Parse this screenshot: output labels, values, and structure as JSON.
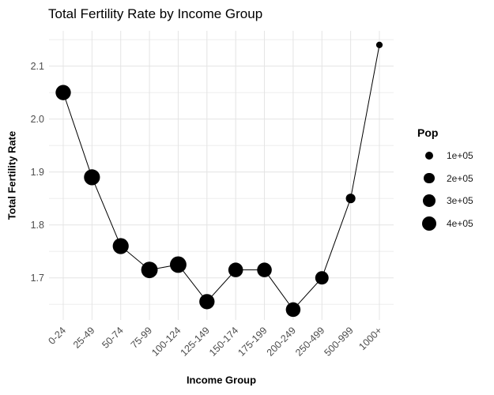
{
  "title": "Total Fertility Rate by Income Group",
  "axes": {
    "x_title": "Income Group",
    "y_title": "Total Fertility Rate"
  },
  "legend": {
    "title": "Pop",
    "items": [
      {
        "label": "1e+05",
        "pop": 100000
      },
      {
        "label": "2e+05",
        "pop": 200000
      },
      {
        "label": "3e+05",
        "pop": 300000
      },
      {
        "label": "4e+05",
        "pop": 400000
      }
    ]
  },
  "chart_data": {
    "type": "scatter",
    "connected_line": true,
    "title": "Total Fertility Rate by Income Group",
    "xlabel": "Income Group",
    "ylabel": "Total Fertility Rate",
    "categories": [
      "0-24",
      "25-49",
      "50-74",
      "75-99",
      "100-124",
      "125-149",
      "150-174",
      "175-199",
      "200-249",
      "250-499",
      "500-999",
      "1000+"
    ],
    "series": [
      {
        "name": "Total Fertility Rate",
        "values": [
          2.05,
          1.89,
          1.76,
          1.715,
          1.725,
          1.655,
          1.715,
          1.715,
          1.64,
          1.7,
          1.85,
          2.14
        ]
      },
      {
        "name": "Pop (bubble size, estimated from point area)",
        "values": [
          470000,
          520000,
          520000,
          560000,
          560000,
          470000,
          430000,
          430000,
          430000,
          350000,
          160000,
          60000
        ]
      }
    ],
    "y_ticks": [
      2.1,
      2.0,
      1.9,
      1.8,
      1.7
    ],
    "y_minor_ticks": [
      2.15,
      2.05,
      1.95,
      1.85,
      1.75,
      1.65
    ],
    "ylim": [
      1.62,
      2.165
    ],
    "grid": true,
    "legend_position": "right",
    "legend_title": "Pop",
    "point_color": "#000000",
    "line_color": "#000000"
  },
  "colors": {
    "background": "#ffffff",
    "grid_major": "#e4e4e4",
    "grid_minor": "#ededed",
    "axis_text": "#4d4d4d",
    "text": "#000000"
  }
}
